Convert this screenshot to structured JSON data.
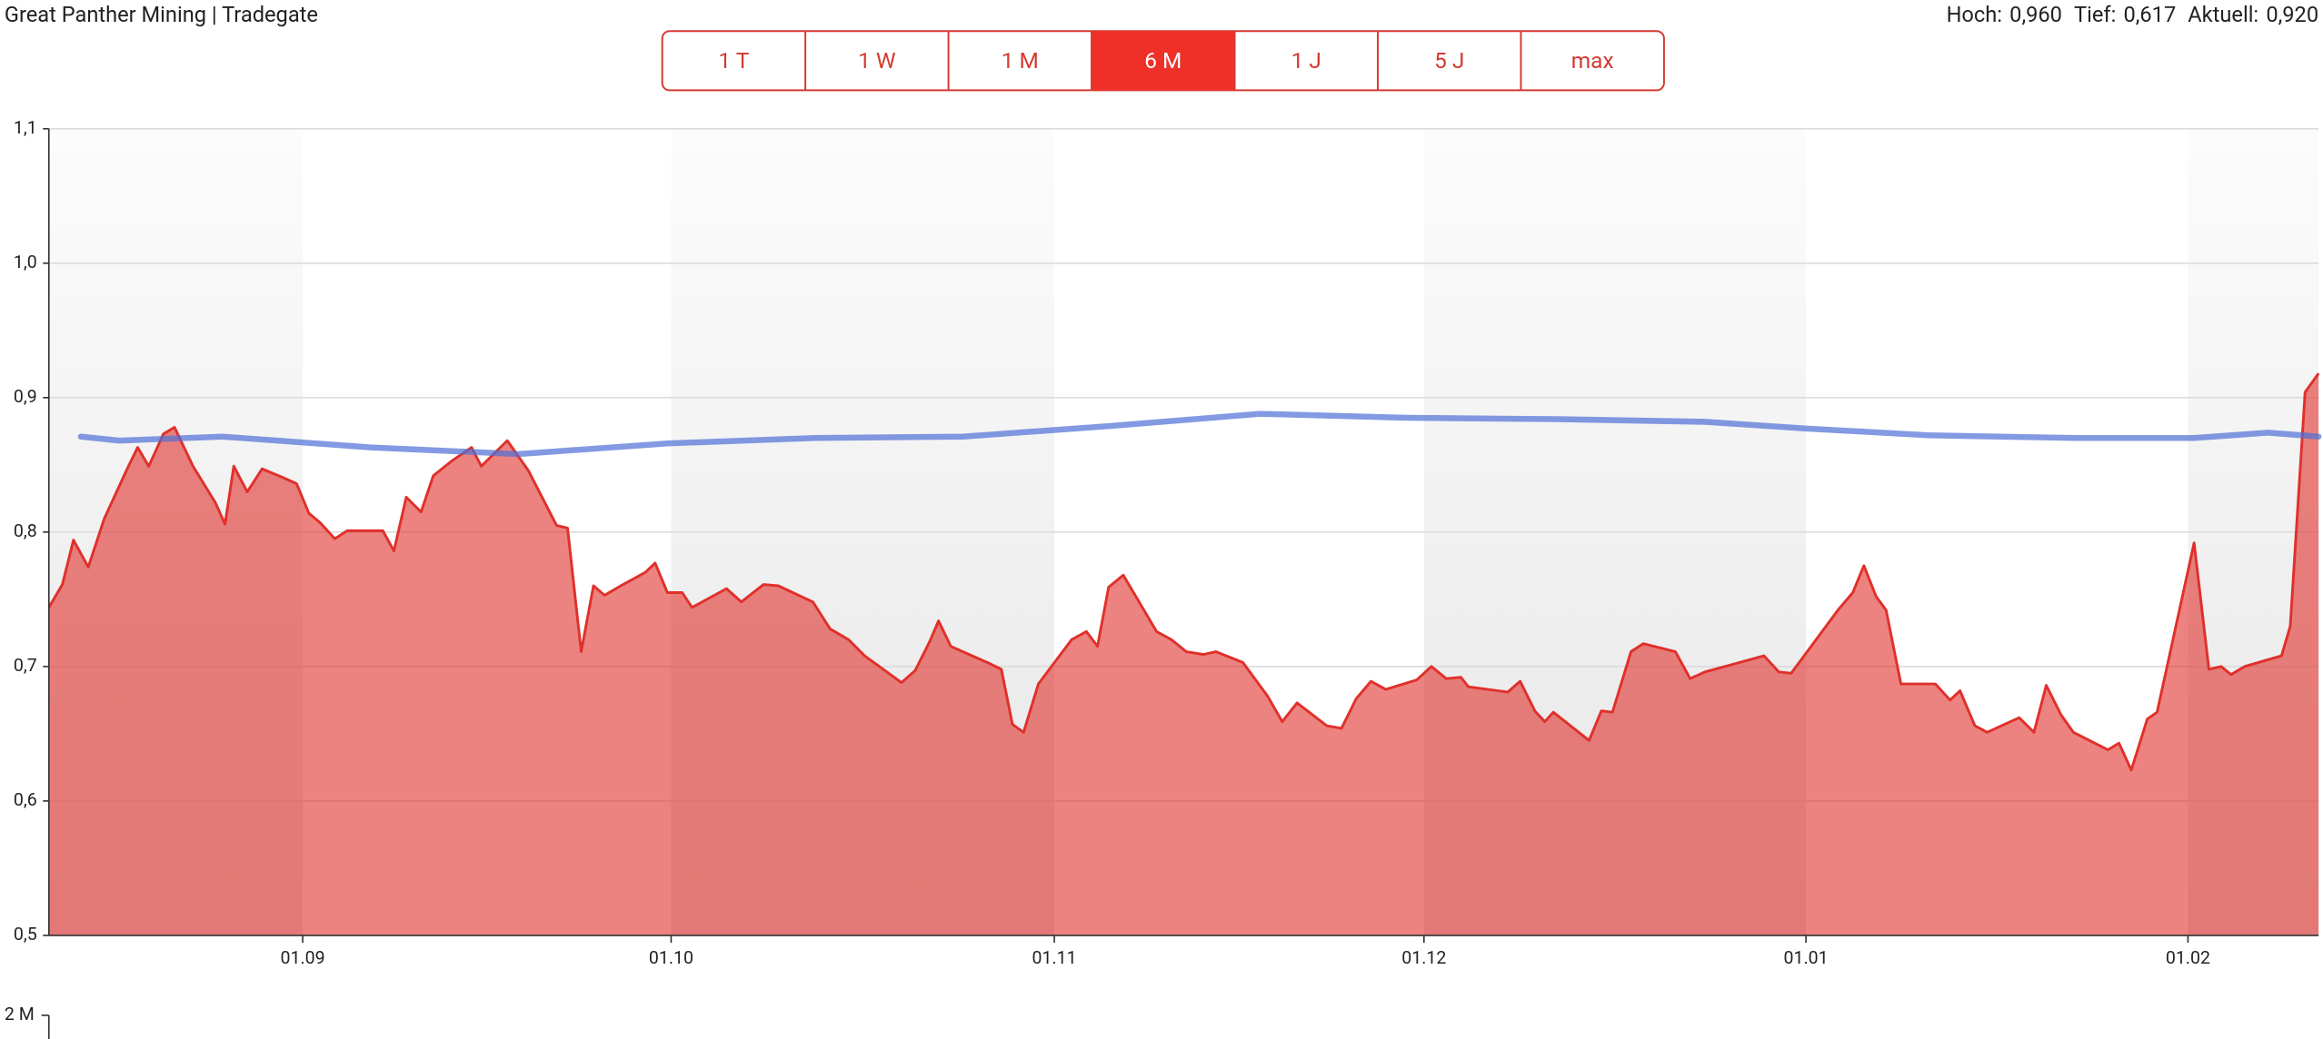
{
  "header": {
    "title": "Great Panther Mining | Tradegate",
    "stats": [
      {
        "label": "Hoch:",
        "value": "0,960"
      },
      {
        "label": "Tief:",
        "value": "0,617"
      },
      {
        "label": "Aktuell:",
        "value": "0,920"
      }
    ]
  },
  "buttons": [
    {
      "label": "1 T"
    },
    {
      "label": "1 W"
    },
    {
      "label": "1 M"
    },
    {
      "label": "6 M",
      "active": true
    },
    {
      "label": "1 J"
    },
    {
      "label": "5 J"
    },
    {
      "label": "max"
    }
  ],
  "volume_axis_label": "2 M",
  "chart_data": {
    "type": "area",
    "xlim": [
      0,
      184.2
    ],
    "xticks": [
      {
        "value": 20.6,
        "label": "01.09"
      },
      {
        "value": 50.5,
        "label": "01.10"
      },
      {
        "value": 81.6,
        "label": "01.11"
      },
      {
        "value": 111.6,
        "label": "01.12"
      },
      {
        "value": 142.6,
        "label": "01.01"
      },
      {
        "value": 173.6,
        "label": "01.02"
      }
    ],
    "ylim": [
      0.5,
      1.1
    ],
    "yticks": [
      {
        "value": 0.5,
        "label": "0,5"
      },
      {
        "value": 0.6,
        "label": "0,6"
      },
      {
        "value": 0.7,
        "label": "0,7"
      },
      {
        "value": 0.8,
        "label": "0,8"
      },
      {
        "value": 0.9,
        "label": "0,9"
      },
      {
        "value": 1.0,
        "label": "1,0"
      },
      {
        "value": 1.1,
        "label": "1,1"
      }
    ],
    "grid": true,
    "series": [
      {
        "color": "#e0302b",
        "x": [
          0,
          1.1,
          2.0,
          3.2,
          4.5,
          6.3,
          7.2,
          8.1,
          9.3,
          10.2,
          11.7,
          13.5,
          14.3,
          15.0,
          16.1,
          17.3,
          18.9,
          20.1,
          21.1,
          22.0,
          23.2,
          24.2,
          27.1,
          28.0,
          29.0,
          30.2,
          31.2,
          32.7,
          34.3,
          35.1,
          37.2,
          38.9,
          41.2,
          42.1,
          43.2,
          44.2,
          45.1,
          46.6,
          48.4,
          49.2,
          50.2,
          51.4,
          52.2,
          55.0,
          56.2,
          58.0,
          59.2,
          62.0,
          63.4,
          64.9,
          66.2,
          69.2,
          70.3,
          71.5,
          72.2,
          73.2,
          76.4,
          77.3,
          78.2,
          79.1,
          80.3,
          83.0,
          84.2,
          85.1,
          86.0,
          87.2,
          89.9,
          91.1,
          92.3,
          93.7,
          94.7,
          96.9,
          98.9,
          100.1,
          101.3,
          103.7,
          104.9,
          106.1,
          107.3,
          108.5,
          111.0,
          112.2,
          113.4,
          114.6,
          115.2,
          118.4,
          119.4,
          120.6,
          121.4,
          122.1,
          125.0,
          126.0,
          126.9,
          128.4,
          129.4,
          132.0,
          133.2,
          134.4,
          139.2,
          140.4,
          141.4,
          145.2,
          146.4,
          147.3,
          148.3,
          149.1,
          150.3,
          153.1,
          154.3,
          155.1,
          156.3,
          157.3,
          159.9,
          161.1,
          162.1,
          163.3,
          164.3,
          167.1,
          168.0,
          169.0,
          170.3,
          171.1,
          174.1,
          175.3,
          176.3,
          177.1,
          178.2,
          181.2,
          181.9,
          183.1,
          184.2
        ],
        "values": [
          0.744,
          0.761,
          0.794,
          0.774,
          0.81,
          0.846,
          0.863,
          0.849,
          0.873,
          0.878,
          0.849,
          0.822,
          0.806,
          0.849,
          0.83,
          0.847,
          0.841,
          0.836,
          0.814,
          0.807,
          0.795,
          0.801,
          0.801,
          0.786,
          0.826,
          0.815,
          0.842,
          0.853,
          0.863,
          0.849,
          0.868,
          0.846,
          0.805,
          0.803,
          0.711,
          0.76,
          0.753,
          0.761,
          0.77,
          0.777,
          0.755,
          0.755,
          0.744,
          0.758,
          0.748,
          0.761,
          0.76,
          0.748,
          0.728,
          0.72,
          0.708,
          0.688,
          0.697,
          0.719,
          0.734,
          0.715,
          0.702,
          0.698,
          0.657,
          0.651,
          0.687,
          0.72,
          0.726,
          0.715,
          0.759,
          0.768,
          0.726,
          0.72,
          0.711,
          0.709,
          0.711,
          0.703,
          0.678,
          0.659,
          0.673,
          0.656,
          0.654,
          0.676,
          0.689,
          0.683,
          0.69,
          0.7,
          0.691,
          0.692,
          0.685,
          0.681,
          0.689,
          0.667,
          0.659,
          0.666,
          0.645,
          0.667,
          0.666,
          0.711,
          0.717,
          0.711,
          0.691,
          0.696,
          0.708,
          0.696,
          0.695,
          0.742,
          0.755,
          0.775,
          0.752,
          0.742,
          0.687,
          0.687,
          0.675,
          0.682,
          0.656,
          0.651,
          0.662,
          0.651,
          0.686,
          0.664,
          0.651,
          0.638,
          0.643,
          0.623,
          0.661,
          0.666,
          0.792,
          0.698,
          0.7,
          0.694,
          0.7,
          0.708,
          0.73,
          0.904,
          0.918
        ]
      },
      {
        "color": "#4f6fd6",
        "type": "line",
        "x": [
          2.6,
          5.7,
          14.1,
          26.1,
          38.1,
          50.2,
          62.2,
          74.2,
          86.3,
          98.3,
          110.3,
          122.4,
          134.4,
          142.8,
          152.5,
          164.5,
          174.1,
          180.1,
          184.2
        ],
        "values": [
          0.871,
          0.868,
          0.871,
          0.863,
          0.858,
          0.866,
          0.87,
          0.871,
          0.879,
          0.888,
          0.885,
          0.884,
          0.882,
          0.877,
          0.872,
          0.87,
          0.87,
          0.874,
          0.871
        ]
      }
    ]
  }
}
